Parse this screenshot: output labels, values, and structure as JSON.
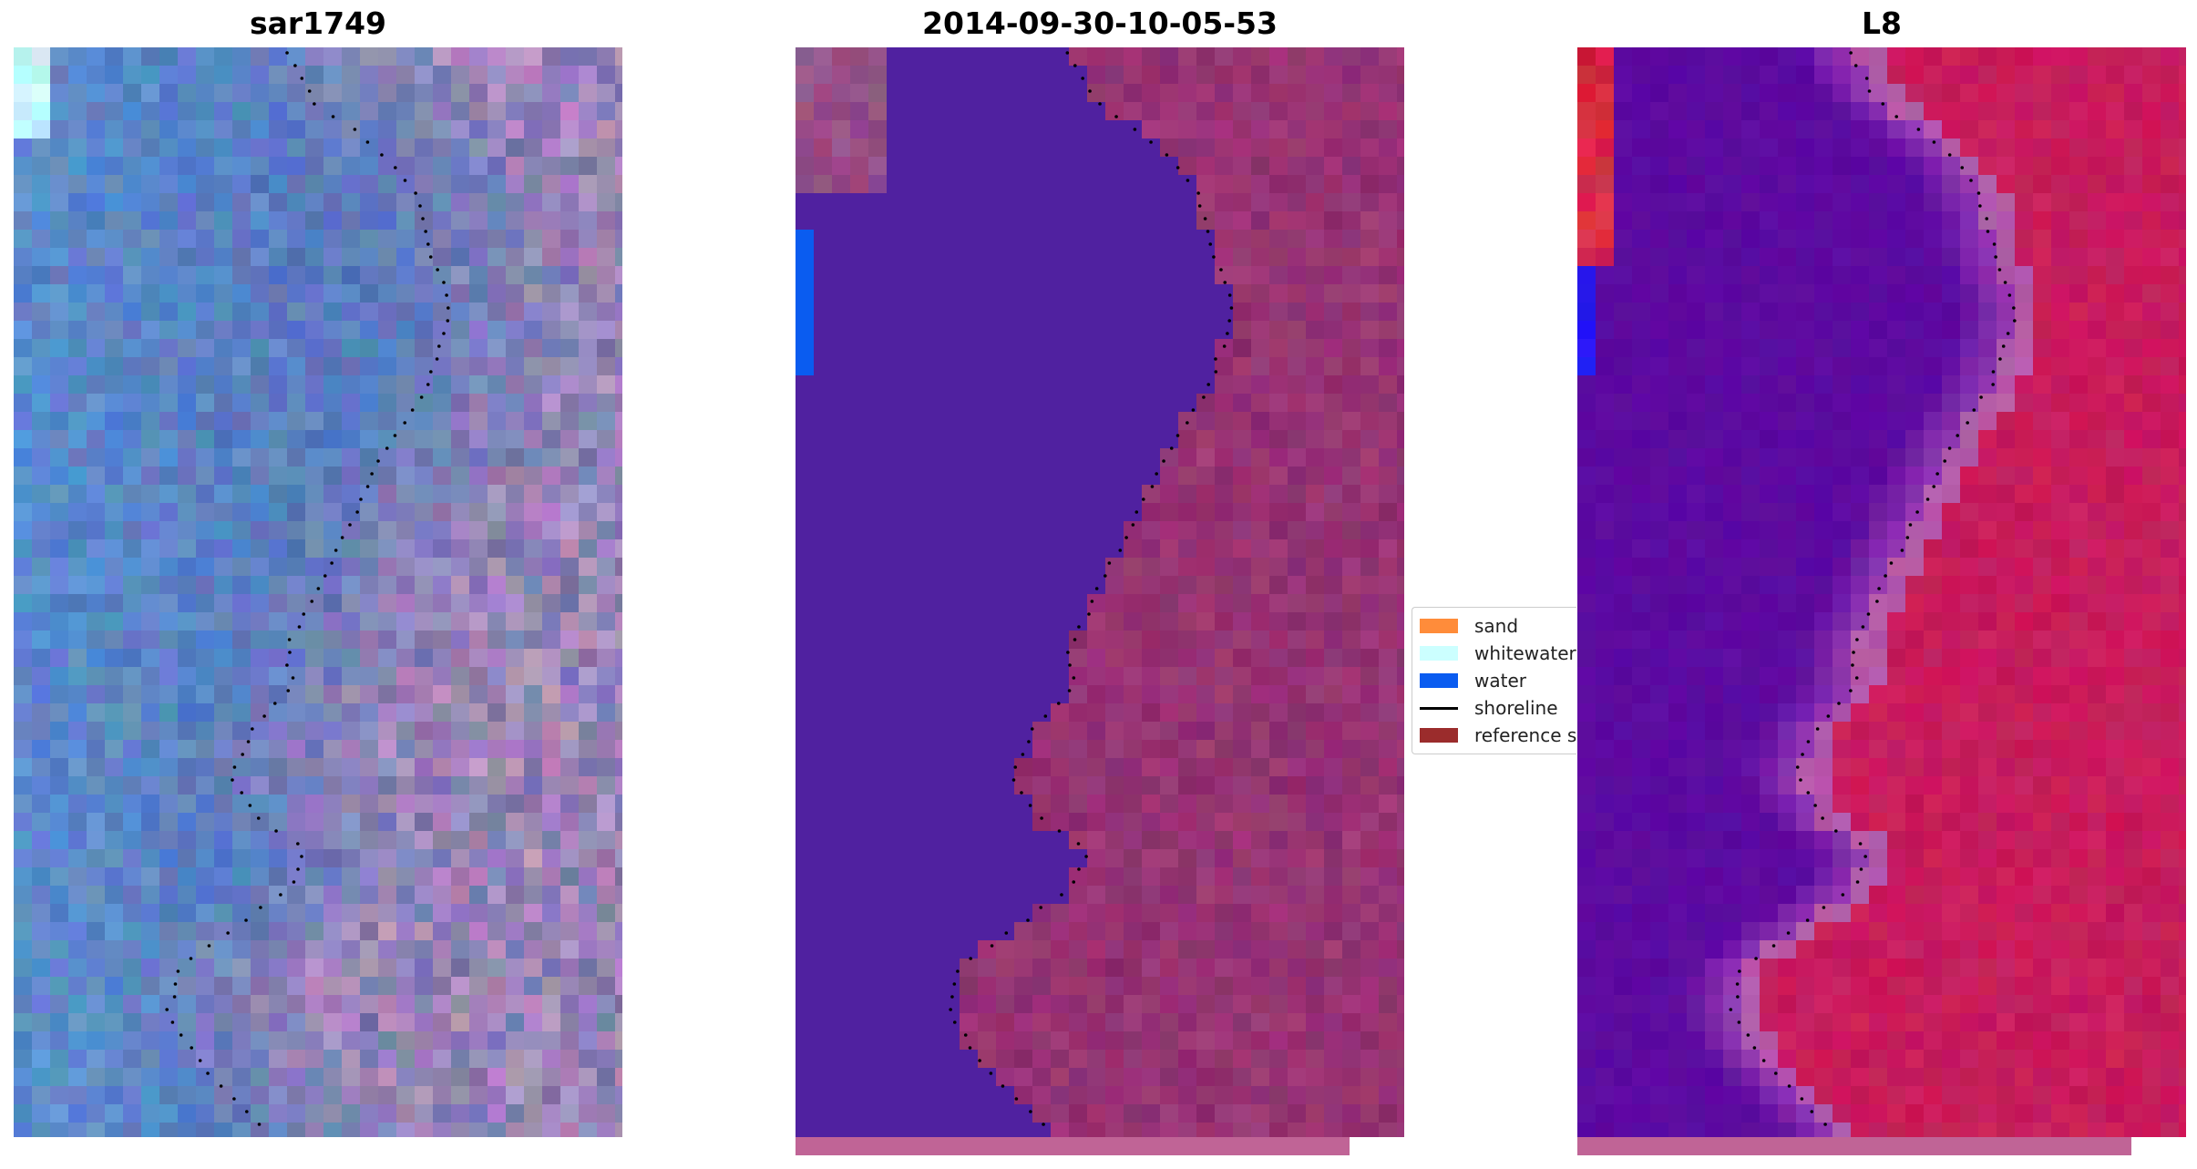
{
  "panels": [
    {
      "title": "sar1749"
    },
    {
      "title": "2014-09-30-10-05-53"
    },
    {
      "title": "L8"
    }
  ],
  "legend": {
    "items": [
      {
        "label": "sand",
        "color": "#ff8c3a",
        "kind": "patch"
      },
      {
        "label": "whitewater",
        "color": "#ccffff",
        "kind": "patch"
      },
      {
        "label": "water",
        "color": "#0a5cf0",
        "kind": "patch"
      },
      {
        "label": "shoreline",
        "color": "#000000",
        "kind": "line"
      },
      {
        "label": "reference shoreline",
        "color": "#9b2c2c",
        "kind": "patch"
      }
    ]
  },
  "colors": {
    "water_class": "#5021a0",
    "land_class": "#8c2d6e",
    "l8_water": "#5c0aa0",
    "l8_land": "#c8195a",
    "sar_blue": "#5a7dbe",
    "sar_pink": "#c896c8",
    "strip": "#c06496"
  }
}
